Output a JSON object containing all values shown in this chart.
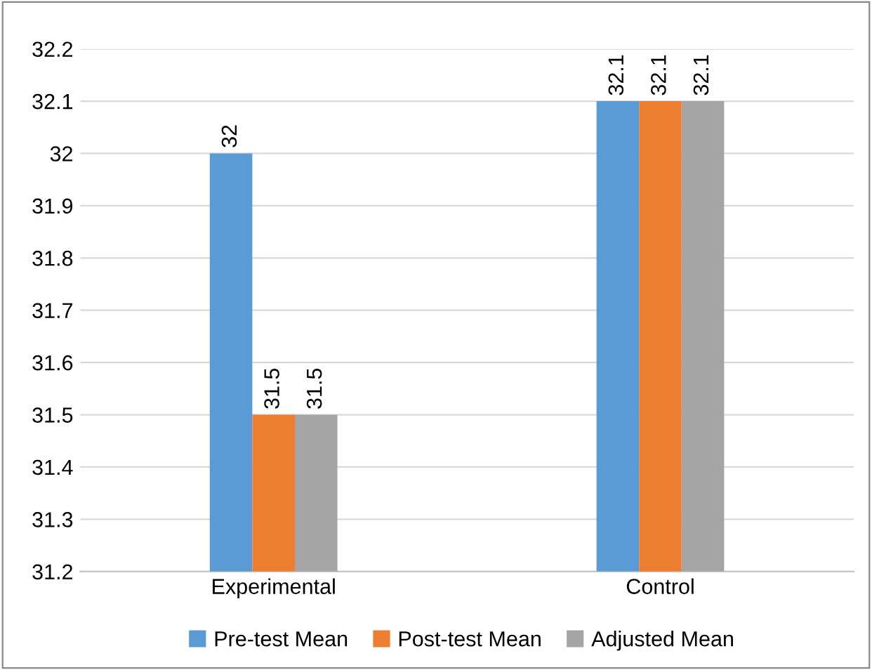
{
  "chart_data": {
    "type": "bar",
    "categories": [
      "Experimental",
      "Control"
    ],
    "series": [
      {
        "name": "Pre-test Mean",
        "color": "#5b9bd5",
        "values": [
          32,
          32.1
        ]
      },
      {
        "name": "Post-test Mean",
        "color": "#ed7d31",
        "values": [
          31.5,
          32.1
        ]
      },
      {
        "name": "Adjusted Mean",
        "color": "#a5a5a5",
        "values": [
          31.5,
          32.1
        ]
      }
    ],
    "ylim": [
      31.2,
      32.2
    ],
    "yticks": [
      31.2,
      31.3,
      31.4,
      31.5,
      31.6,
      31.7,
      31.8,
      31.9,
      32,
      32.1,
      32.2
    ],
    "grid": "y",
    "legend": "bottom",
    "data_labels": true
  }
}
